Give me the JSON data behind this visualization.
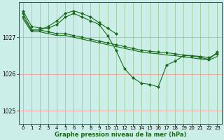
{
  "title": "Graphe pression niveau de la mer (hPa)",
  "bg_color": "#cceee8",
  "grid_color_h": "#ff9999",
  "grid_color_v": "#99cc99",
  "line_color": "#1a6b1a",
  "ylim": [
    1024.65,
    1027.95
  ],
  "xlim": [
    -0.5,
    23.5
  ],
  "yticks": [
    1025,
    1026,
    1027
  ],
  "xticks": [
    0,
    1,
    2,
    3,
    4,
    5,
    6,
    7,
    8,
    9,
    10,
    11,
    12,
    13,
    14,
    15,
    16,
    17,
    18,
    19,
    20,
    21,
    22,
    23
  ],
  "series": [
    {
      "x": [
        0,
        1,
        2,
        3,
        4,
        5,
        6,
        7,
        8,
        9,
        10,
        11,
        12,
        13,
        14,
        15,
        16,
        17,
        18,
        19,
        20,
        21,
        22,
        23
      ],
      "y": [
        1027.55,
        1027.2,
        1027.2,
        1027.15,
        1027.1,
        1027.1,
        1027.05,
        1027.0,
        1026.95,
        1026.9,
        1026.85,
        1026.8,
        1026.75,
        1026.7,
        1026.65,
        1026.62,
        1026.6,
        1026.58,
        1026.55,
        1026.52,
        1026.5,
        1026.48,
        1026.45,
        1026.55
      ],
      "marker": "D",
      "markersize": 2.0,
      "linewidth": 0.8
    },
    {
      "x": [
        0,
        1,
        2,
        3,
        4,
        5,
        6,
        7,
        8,
        9,
        10,
        11,
        12,
        13,
        14,
        15,
        16,
        17,
        18,
        19,
        20,
        21,
        22,
        23
      ],
      "y": [
        1027.5,
        1027.15,
        1027.15,
        1027.1,
        1027.05,
        1027.05,
        1027.0,
        1026.95,
        1026.9,
        1026.85,
        1026.8,
        1026.75,
        1026.7,
        1026.65,
        1026.6,
        1026.57,
        1026.55,
        1026.52,
        1026.5,
        1026.47,
        1026.44,
        1026.41,
        1026.38,
        1026.48
      ],
      "marker": null,
      "markersize": 0,
      "linewidth": 0.8
    },
    {
      "x": [
        0,
        1,
        2,
        3,
        4,
        5,
        6,
        7,
        8,
        9,
        10,
        11
      ],
      "y": [
        1027.65,
        1027.2,
        1027.2,
        1027.3,
        1027.45,
        1027.65,
        1027.72,
        1027.65,
        1027.55,
        1027.4,
        1027.25,
        1027.1
      ],
      "marker": "D",
      "markersize": 2.0,
      "linewidth": 0.8
    },
    {
      "x": [
        0,
        1,
        2,
        3,
        4,
        5,
        6,
        7,
        8,
        9,
        10,
        11,
        12,
        13,
        14,
        15,
        16,
        17,
        18,
        19,
        20,
        21,
        22,
        23
      ],
      "y": [
        1027.72,
        1027.3,
        1027.25,
        1027.25,
        1027.35,
        1027.55,
        1027.65,
        1027.55,
        1027.45,
        1027.35,
        1027.05,
        1026.65,
        1026.15,
        1025.9,
        1025.75,
        1025.72,
        1025.65,
        1026.25,
        1026.35,
        1026.5,
        1026.5,
        1026.45,
        1026.4,
        1026.6
      ],
      "marker": "D",
      "markersize": 2.0,
      "linewidth": 0.8
    }
  ]
}
